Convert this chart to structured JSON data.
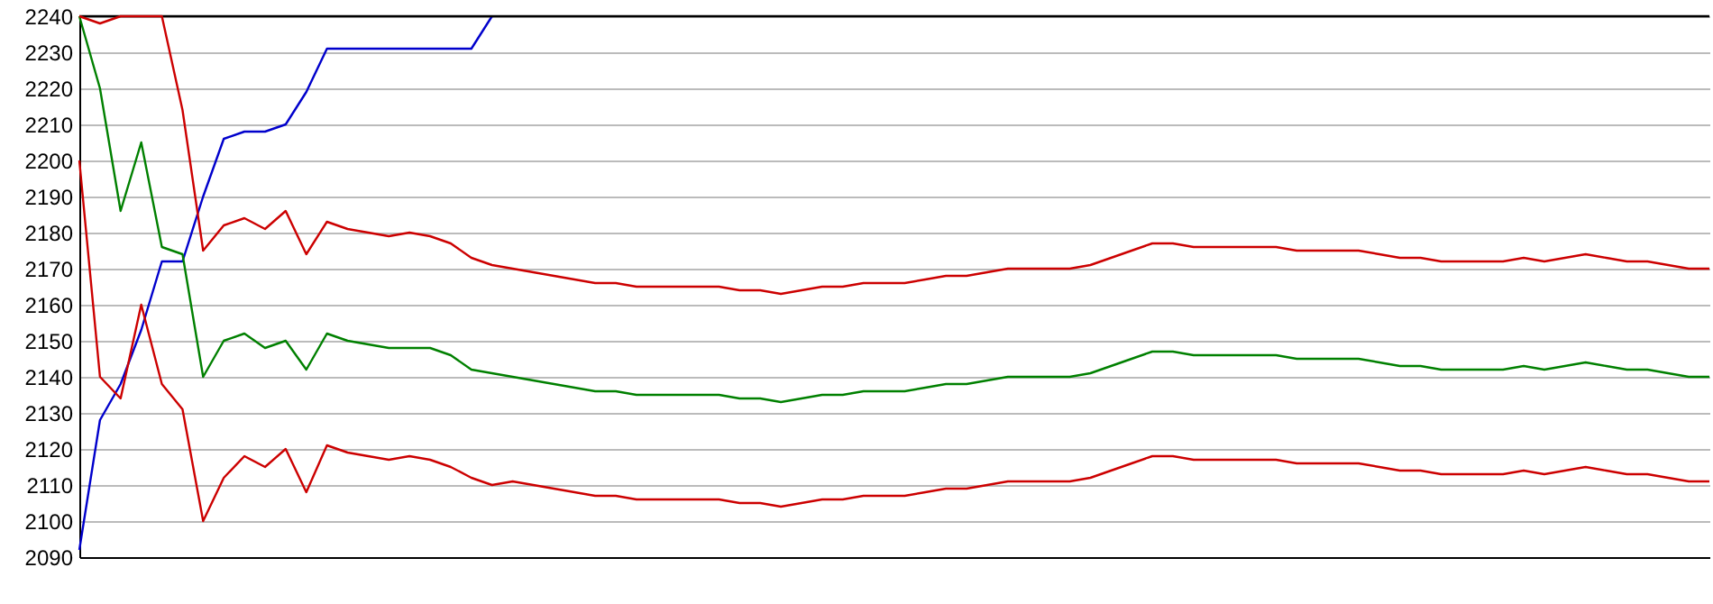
{
  "chart_data": {
    "type": "line",
    "categories": [
      null,
      null,
      null,
      null,
      null,
      null,
      null,
      null,
      null,
      null,
      null,
      null,
      null,
      null,
      null,
      null,
      null,
      null,
      null,
      null,
      null,
      null,
      null,
      null,
      null,
      null,
      null,
      null,
      null,
      null,
      null,
      null,
      null,
      null,
      null,
      null,
      null,
      null,
      null,
      null,
      null,
      null,
      null,
      null,
      null,
      null,
      null,
      null,
      null,
      null,
      null,
      null,
      null,
      null,
      null,
      null,
      null,
      null,
      null,
      null,
      null,
      null,
      null,
      null,
      null,
      null,
      null,
      null,
      null,
      null,
      null,
      null,
      null,
      null,
      null,
      null,
      null,
      null,
      null,
      null
    ],
    "ylim": [
      2090,
      2240
    ],
    "yticks": [
      2090,
      2100,
      2110,
      2120,
      2130,
      2140,
      2150,
      2160,
      2170,
      2180,
      2190,
      2200,
      2210,
      2220,
      2230,
      2240
    ],
    "grid": "y",
    "tick_labels": "y",
    "series": [
      {
        "color": "#0000cc",
        "values": [
          2092,
          2128,
          2138,
          2153,
          2172,
          2172,
          2190,
          2206,
          2208,
          2208,
          2210,
          2219,
          2231,
          2231,
          2231,
          2231,
          2231,
          2231,
          2231,
          2231,
          2240,
          null,
          null,
          null,
          null,
          null,
          null,
          null,
          null,
          null,
          null,
          null,
          null,
          null,
          null,
          null,
          null,
          null,
          null,
          null,
          null,
          null,
          null,
          null,
          null,
          null,
          null,
          null,
          null,
          null,
          null,
          null,
          null,
          null,
          null,
          null,
          null,
          null,
          null,
          null,
          null,
          null,
          null,
          null,
          null,
          null,
          null,
          null,
          null,
          null,
          null,
          null,
          null,
          null,
          null,
          null,
          null,
          null,
          null,
          null
        ]
      },
      {
        "color": "#000000",
        "values": [
          2240,
          2240,
          2240,
          2240,
          2240,
          2240,
          2240,
          2240,
          2240,
          2240,
          2240,
          2240,
          2240,
          2240,
          2240,
          2240,
          2240,
          2240,
          2240,
          2240,
          2240,
          2240,
          2240,
          2240,
          2240,
          2240,
          2240,
          2240,
          2240,
          2240,
          2240,
          2240,
          2240,
          2240,
          2240,
          2240,
          2240,
          2240,
          2240,
          2240,
          2240,
          2240,
          2240,
          2240,
          2240,
          2240,
          2240,
          2240,
          2240,
          2240,
          2240,
          2240,
          2240,
          2240,
          2240,
          2240,
          2240,
          2240,
          2240,
          2240,
          2240,
          2240,
          2240,
          2240,
          2240,
          2240,
          2240,
          2240,
          2240,
          2240,
          2240,
          2240,
          2240,
          2240,
          2240,
          2240,
          2240,
          2240,
          2240,
          2240
        ]
      },
      {
        "color": "#008000",
        "values": [
          2240,
          2220,
          2186,
          2205,
          2176,
          2174,
          2140,
          2150,
          2152,
          2148,
          2150,
          2142,
          2152,
          2150,
          2149,
          2148,
          2148,
          2148,
          2146,
          2142,
          2141,
          2140,
          2139,
          2138,
          2137,
          2136,
          2136,
          2135,
          2135,
          2135,
          2135,
          2135,
          2134,
          2134,
          2133,
          2134,
          2135,
          2135,
          2136,
          2136,
          2136,
          2137,
          2138,
          2138,
          2139,
          2140,
          2140,
          2140,
          2140,
          2141,
          2143,
          2145,
          2147,
          2147,
          2146,
          2146,
          2146,
          2146,
          2146,
          2145,
          2145,
          2145,
          2145,
          2144,
          2143,
          2143,
          2142,
          2142,
          2142,
          2142,
          2143,
          2142,
          2143,
          2144,
          2143,
          2142,
          2142,
          2141,
          2140,
          2140
        ]
      },
      {
        "color": "#cc0000",
        "values": [
          2240,
          2238,
          2240,
          2240,
          2240,
          2214,
          2175,
          2182,
          2184,
          2181,
          2186,
          2174,
          2183,
          2181,
          2180,
          2179,
          2180,
          2179,
          2177,
          2173,
          2171,
          2170,
          2169,
          2168,
          2167,
          2166,
          2166,
          2165,
          2165,
          2165,
          2165,
          2165,
          2164,
          2164,
          2163,
          2164,
          2165,
          2165,
          2166,
          2166,
          2166,
          2167,
          2168,
          2168,
          2169,
          2170,
          2170,
          2170,
          2170,
          2171,
          2173,
          2175,
          2177,
          2177,
          2176,
          2176,
          2176,
          2176,
          2176,
          2175,
          2175,
          2175,
          2175,
          2174,
          2173,
          2173,
          2172,
          2172,
          2172,
          2172,
          2173,
          2172,
          2173,
          2174,
          2173,
          2172,
          2172,
          2171,
          2170,
          2170
        ]
      },
      {
        "color": "#cc0000",
        "values": [
          2200,
          2140,
          2134,
          2160,
          2138,
          2131,
          2100,
          2112,
          2118,
          2115,
          2120,
          2108,
          2121,
          2119,
          2118,
          2117,
          2118,
          2117,
          2115,
          2112,
          2110,
          2111,
          2110,
          2109,
          2108,
          2107,
          2107,
          2106,
          2106,
          2106,
          2106,
          2106,
          2105,
          2105,
          2104,
          2105,
          2106,
          2106,
          2107,
          2107,
          2107,
          2108,
          2109,
          2109,
          2110,
          2111,
          2111,
          2111,
          2111,
          2112,
          2114,
          2116,
          2118,
          2118,
          2117,
          2117,
          2117,
          2117,
          2117,
          2116,
          2116,
          2116,
          2116,
          2115,
          2114,
          2114,
          2113,
          2113,
          2113,
          2113,
          2114,
          2113,
          2114,
          2115,
          2114,
          2113,
          2113,
          2112,
          2111,
          2111
        ]
      }
    ]
  }
}
